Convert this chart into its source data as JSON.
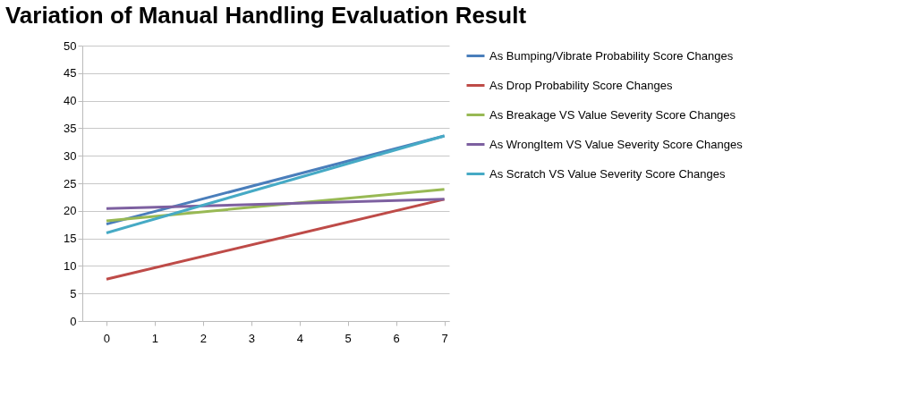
{
  "chart_data": {
    "type": "line",
    "title": "Variation of Manual Handling Evaluation Result",
    "x": [
      0,
      7
    ],
    "xlim": [
      -0.5,
      7.1
    ],
    "xticks": [
      0,
      1,
      2,
      3,
      4,
      5,
      6,
      7
    ],
    "ylim": [
      0,
      50
    ],
    "yticks": [
      0,
      5,
      10,
      15,
      20,
      25,
      30,
      35,
      40,
      45,
      50
    ],
    "grid": "y",
    "legend": "right",
    "marker": "none",
    "line_style": "solid",
    "series": [
      {
        "name": "As Bumping/Vibrate Probability Score Changes",
        "color": "#4a7ebb",
        "values": [
          17.6,
          33.6
        ]
      },
      {
        "name": "As Drop Probability Score Changes",
        "color": "#be4b48",
        "values": [
          7.6,
          22.1
        ]
      },
      {
        "name": "As Breakage VS Value Severity Score Changes",
        "color": "#98b954",
        "values": [
          18.2,
          23.9
        ]
      },
      {
        "name": "As WrongItem VS Value Severity Score Changes",
        "color": "#7d60a0",
        "values": [
          20.4,
          22.1
        ]
      },
      {
        "name": "As Scratch VS Value Severity Score Changes",
        "color": "#46aac5",
        "values": [
          16.0,
          33.6
        ]
      }
    ]
  }
}
